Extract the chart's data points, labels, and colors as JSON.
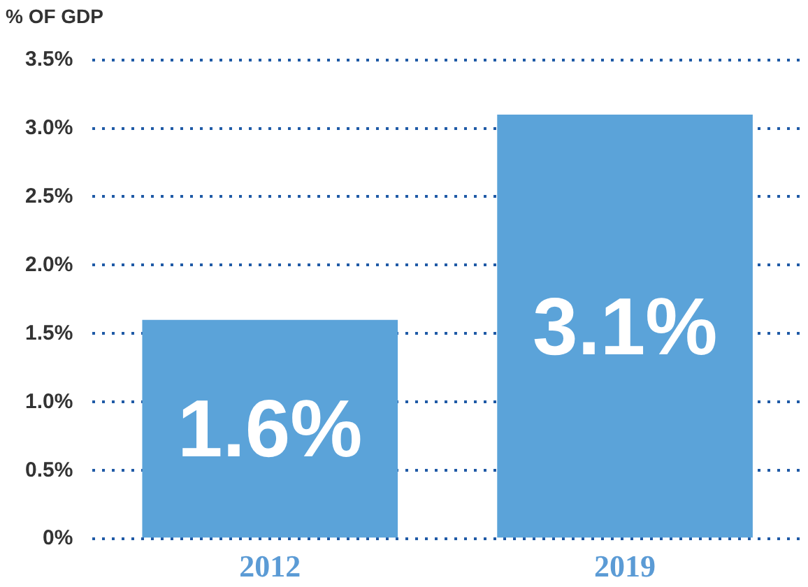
{
  "chart_data": {
    "type": "bar",
    "title": "% OF GDP",
    "categories": [
      "2012",
      "2019"
    ],
    "values": [
      1.6,
      3.1
    ],
    "value_labels": [
      "1.6%",
      "3.1%"
    ],
    "color": "#5ba3d9",
    "ylim": [
      0,
      3.5
    ],
    "yticks": [
      {
        "value": 0,
        "label": "0%"
      },
      {
        "value": 0.5,
        "label": "0.5%"
      },
      {
        "value": 1,
        "label": "1.0%"
      },
      {
        "value": 1.5,
        "label": "1.5%"
      },
      {
        "value": 2,
        "label": "2.0%"
      },
      {
        "value": 2.5,
        "label": "2.5%"
      },
      {
        "value": 3,
        "label": "3.0%"
      },
      {
        "value": 3.5,
        "label": "3.5%"
      }
    ],
    "grid": "y",
    "legend": false
  }
}
